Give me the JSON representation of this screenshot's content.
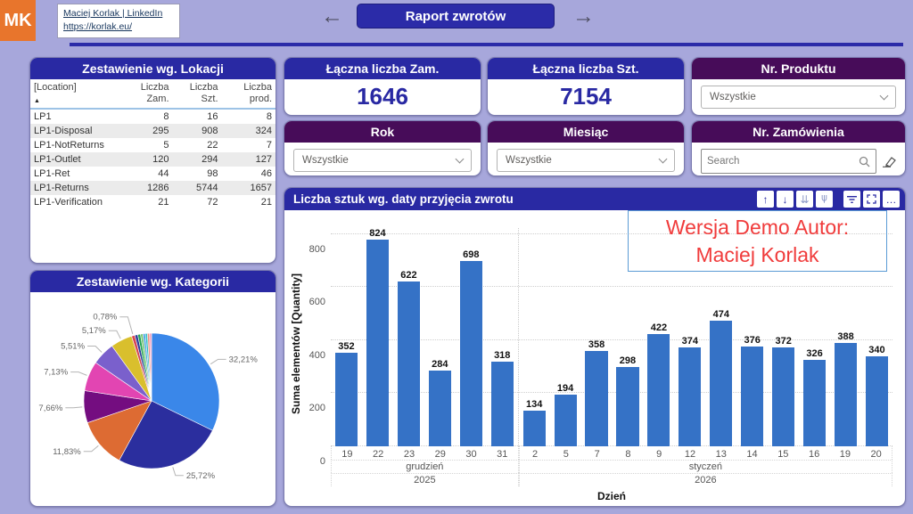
{
  "topbar": {
    "logo_text": "MK",
    "link_line1": "Maciej Korlak | LinkedIn",
    "link_line2": "https://korlak.eu/",
    "nav_title": "Raport zwrotów"
  },
  "icons": {
    "nav_left": "←",
    "nav_right": "→",
    "sort_asc": "▲",
    "drill_up": "↑",
    "drill_down": "↓",
    "next_level": "⇊",
    "expand_all": "⋔",
    "more": "…"
  },
  "location_table": {
    "title": "Zestawienie wg. Lokacji",
    "columns": [
      "[Location]",
      "Liczba Zam.",
      "Liczba Szt.",
      "Liczba prod."
    ],
    "rows": [
      [
        "LP1",
        "8",
        "16",
        "8"
      ],
      [
        "LP1-Disposal",
        "295",
        "908",
        "324"
      ],
      [
        "LP1-NotReturns",
        "5",
        "22",
        "7"
      ],
      [
        "LP1-Outlet",
        "120",
        "294",
        "127"
      ],
      [
        "LP1-Ret",
        "44",
        "98",
        "46"
      ],
      [
        "LP1-Returns",
        "1286",
        "5744",
        "1657"
      ],
      [
        "LP1-Verification",
        "21",
        "72",
        "21"
      ]
    ]
  },
  "cards": {
    "orders": {
      "title": "Łączna liczba Zam.",
      "value": "1646"
    },
    "units": {
      "title": "Łączna liczba Szt.",
      "value": "7154"
    }
  },
  "slicers": {
    "product": {
      "title": "Nr. Produktu",
      "value": "Wszystkie"
    },
    "year": {
      "title": "Rok",
      "value": "Wszystkie"
    },
    "month": {
      "title": "Miesiąc",
      "value": "Wszystkie"
    },
    "order": {
      "title": "Nr. Zamówienia",
      "search_placeholder": "Search"
    }
  },
  "demo_note": {
    "line1": "Wersja Demo Autor:",
    "line2": "Maciej Korlak"
  },
  "colors": {
    "accent_blue": "#2929a3",
    "accent_purple": "#470c59",
    "bar_blue": "#3572c6",
    "logo_orange": "#e8752c",
    "demo_red": "#f03b3b",
    "background": "#a7a7db"
  },
  "chart_data": [
    {
      "type": "pie",
      "title": "Zestawienie wg. Kategorii",
      "values": [
        32.21,
        25.72,
        11.83,
        7.66,
        7.13,
        5.51,
        5.17,
        0.78,
        0.7,
        0.65,
        0.6,
        0.55,
        0.5,
        0.5,
        0.49
      ],
      "labels": [
        "32,21%",
        "25,72%",
        "11,83%",
        "7,66%",
        "7,13%",
        "5,51%",
        "5,17%",
        "0,78%",
        null,
        null,
        null,
        null,
        null,
        null,
        null
      ],
      "colors": [
        "#3a87e9",
        "#2b2e9e",
        "#dd6b33",
        "#740d80",
        "#e245b2",
        "#7a60cc",
        "#d9bf2d",
        "#d64554",
        "#2c3e9a",
        "#23a455",
        "#7cc87a",
        "#4fa3e8",
        "#2fbfc3",
        "#f0907e",
        "#f2a0c0"
      ],
      "legend_position": "none"
    },
    {
      "type": "bar",
      "title": "Liczba sztuk wg. daty przyjęcia zwrotu",
      "ylabel": "Suma elementów [Quantity]",
      "xlabel": "Dzień",
      "yticks": [
        0,
        200,
        400,
        600,
        800
      ],
      "ylim": [
        0,
        880
      ],
      "grid": "dotted-horizontal",
      "bar_color": "#3572c6",
      "groups": [
        {
          "month": "grudzień",
          "year": "2025",
          "days": [
            "19",
            "22",
            "23",
            "29",
            "30",
            "31"
          ],
          "values": [
            352,
            824,
            622,
            284,
            698,
            318
          ]
        },
        {
          "month": "styczeń",
          "year": "2026",
          "days": [
            "2",
            "5",
            "7",
            "8",
            "9",
            "12",
            "13",
            "14",
            "15",
            "16",
            "19",
            "20"
          ],
          "values": [
            134,
            194,
            358,
            298,
            422,
            374,
            474,
            376,
            372,
            326,
            388,
            340
          ]
        }
      ]
    }
  ]
}
